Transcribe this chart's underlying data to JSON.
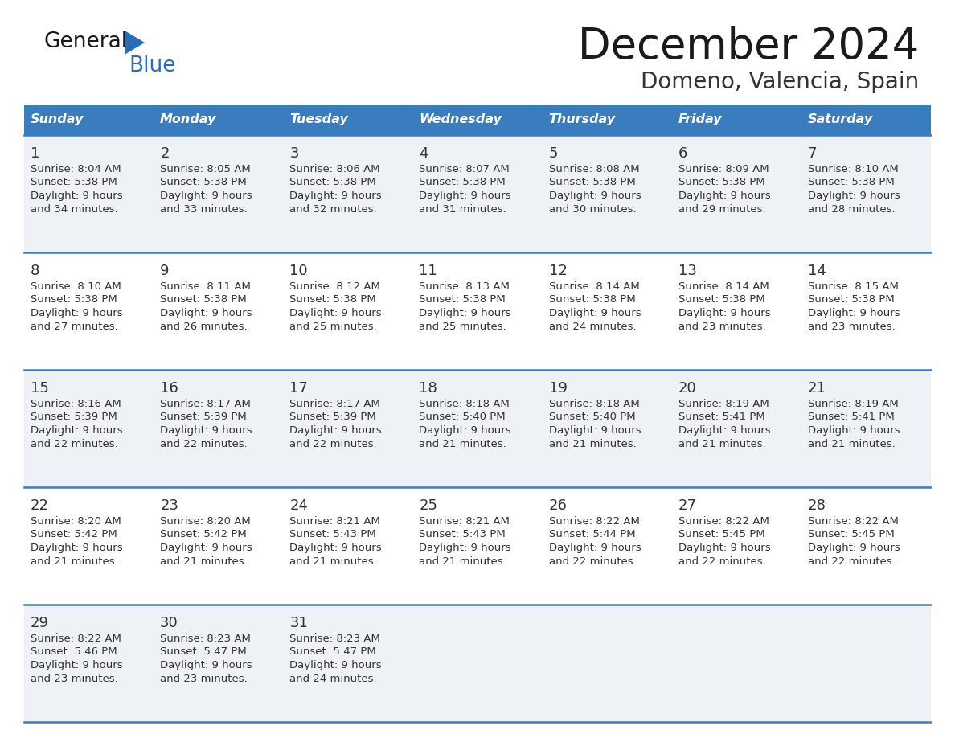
{
  "title": "December 2024",
  "subtitle": "Domeno, Valencia, Spain",
  "header_color": "#3a7dbf",
  "header_text_color": "#ffffff",
  "odd_row_color": "#eef2f7",
  "even_row_color": "#ffffff",
  "line_color": "#3a7dbf",
  "text_color": "#333333",
  "days_of_week": [
    "Sunday",
    "Monday",
    "Tuesday",
    "Wednesday",
    "Thursday",
    "Friday",
    "Saturday"
  ],
  "calendar_data": [
    [
      {
        "day": "1",
        "sunrise": "8:04 AM",
        "sunset": "5:38 PM",
        "daylight_h": "9 hours",
        "daylight_m": "and 34 minutes."
      },
      {
        "day": "2",
        "sunrise": "8:05 AM",
        "sunset": "5:38 PM",
        "daylight_h": "9 hours",
        "daylight_m": "and 33 minutes."
      },
      {
        "day": "3",
        "sunrise": "8:06 AM",
        "sunset": "5:38 PM",
        "daylight_h": "9 hours",
        "daylight_m": "and 32 minutes."
      },
      {
        "day": "4",
        "sunrise": "8:07 AM",
        "sunset": "5:38 PM",
        "daylight_h": "9 hours",
        "daylight_m": "and 31 minutes."
      },
      {
        "day": "5",
        "sunrise": "8:08 AM",
        "sunset": "5:38 PM",
        "daylight_h": "9 hours",
        "daylight_m": "and 30 minutes."
      },
      {
        "day": "6",
        "sunrise": "8:09 AM",
        "sunset": "5:38 PM",
        "daylight_h": "9 hours",
        "daylight_m": "and 29 minutes."
      },
      {
        "day": "7",
        "sunrise": "8:10 AM",
        "sunset": "5:38 PM",
        "daylight_h": "9 hours",
        "daylight_m": "and 28 minutes."
      }
    ],
    [
      {
        "day": "8",
        "sunrise": "8:10 AM",
        "sunset": "5:38 PM",
        "daylight_h": "9 hours",
        "daylight_m": "and 27 minutes."
      },
      {
        "day": "9",
        "sunrise": "8:11 AM",
        "sunset": "5:38 PM",
        "daylight_h": "9 hours",
        "daylight_m": "and 26 minutes."
      },
      {
        "day": "10",
        "sunrise": "8:12 AM",
        "sunset": "5:38 PM",
        "daylight_h": "9 hours",
        "daylight_m": "and 25 minutes."
      },
      {
        "day": "11",
        "sunrise": "8:13 AM",
        "sunset": "5:38 PM",
        "daylight_h": "9 hours",
        "daylight_m": "and 25 minutes."
      },
      {
        "day": "12",
        "sunrise": "8:14 AM",
        "sunset": "5:38 PM",
        "daylight_h": "9 hours",
        "daylight_m": "and 24 minutes."
      },
      {
        "day": "13",
        "sunrise": "8:14 AM",
        "sunset": "5:38 PM",
        "daylight_h": "9 hours",
        "daylight_m": "and 23 minutes."
      },
      {
        "day": "14",
        "sunrise": "8:15 AM",
        "sunset": "5:38 PM",
        "daylight_h": "9 hours",
        "daylight_m": "and 23 minutes."
      }
    ],
    [
      {
        "day": "15",
        "sunrise": "8:16 AM",
        "sunset": "5:39 PM",
        "daylight_h": "9 hours",
        "daylight_m": "and 22 minutes."
      },
      {
        "day": "16",
        "sunrise": "8:17 AM",
        "sunset": "5:39 PM",
        "daylight_h": "9 hours",
        "daylight_m": "and 22 minutes."
      },
      {
        "day": "17",
        "sunrise": "8:17 AM",
        "sunset": "5:39 PM",
        "daylight_h": "9 hours",
        "daylight_m": "and 22 minutes."
      },
      {
        "day": "18",
        "sunrise": "8:18 AM",
        "sunset": "5:40 PM",
        "daylight_h": "9 hours",
        "daylight_m": "and 21 minutes."
      },
      {
        "day": "19",
        "sunrise": "8:18 AM",
        "sunset": "5:40 PM",
        "daylight_h": "9 hours",
        "daylight_m": "and 21 minutes."
      },
      {
        "day": "20",
        "sunrise": "8:19 AM",
        "sunset": "5:41 PM",
        "daylight_h": "9 hours",
        "daylight_m": "and 21 minutes."
      },
      {
        "day": "21",
        "sunrise": "8:19 AM",
        "sunset": "5:41 PM",
        "daylight_h": "9 hours",
        "daylight_m": "and 21 minutes."
      }
    ],
    [
      {
        "day": "22",
        "sunrise": "8:20 AM",
        "sunset": "5:42 PM",
        "daylight_h": "9 hours",
        "daylight_m": "and 21 minutes."
      },
      {
        "day": "23",
        "sunrise": "8:20 AM",
        "sunset": "5:42 PM",
        "daylight_h": "9 hours",
        "daylight_m": "and 21 minutes."
      },
      {
        "day": "24",
        "sunrise": "8:21 AM",
        "sunset": "5:43 PM",
        "daylight_h": "9 hours",
        "daylight_m": "and 21 minutes."
      },
      {
        "day": "25",
        "sunrise": "8:21 AM",
        "sunset": "5:43 PM",
        "daylight_h": "9 hours",
        "daylight_m": "and 21 minutes."
      },
      {
        "day": "26",
        "sunrise": "8:22 AM",
        "sunset": "5:44 PM",
        "daylight_h": "9 hours",
        "daylight_m": "and 22 minutes."
      },
      {
        "day": "27",
        "sunrise": "8:22 AM",
        "sunset": "5:45 PM",
        "daylight_h": "9 hours",
        "daylight_m": "and 22 minutes."
      },
      {
        "day": "28",
        "sunrise": "8:22 AM",
        "sunset": "5:45 PM",
        "daylight_h": "9 hours",
        "daylight_m": "and 22 minutes."
      }
    ],
    [
      {
        "day": "29",
        "sunrise": "8:22 AM",
        "sunset": "5:46 PM",
        "daylight_h": "9 hours",
        "daylight_m": "and 23 minutes."
      },
      {
        "day": "30",
        "sunrise": "8:23 AM",
        "sunset": "5:47 PM",
        "daylight_h": "9 hours",
        "daylight_m": "and 23 minutes."
      },
      {
        "day": "31",
        "sunrise": "8:23 AM",
        "sunset": "5:47 PM",
        "daylight_h": "9 hours",
        "daylight_m": "and 24 minutes."
      },
      null,
      null,
      null,
      null
    ]
  ],
  "logo_general_color": "#1a1a1a",
  "logo_blue_color": "#2a6db5",
  "logo_triangle_color": "#2a6db5"
}
